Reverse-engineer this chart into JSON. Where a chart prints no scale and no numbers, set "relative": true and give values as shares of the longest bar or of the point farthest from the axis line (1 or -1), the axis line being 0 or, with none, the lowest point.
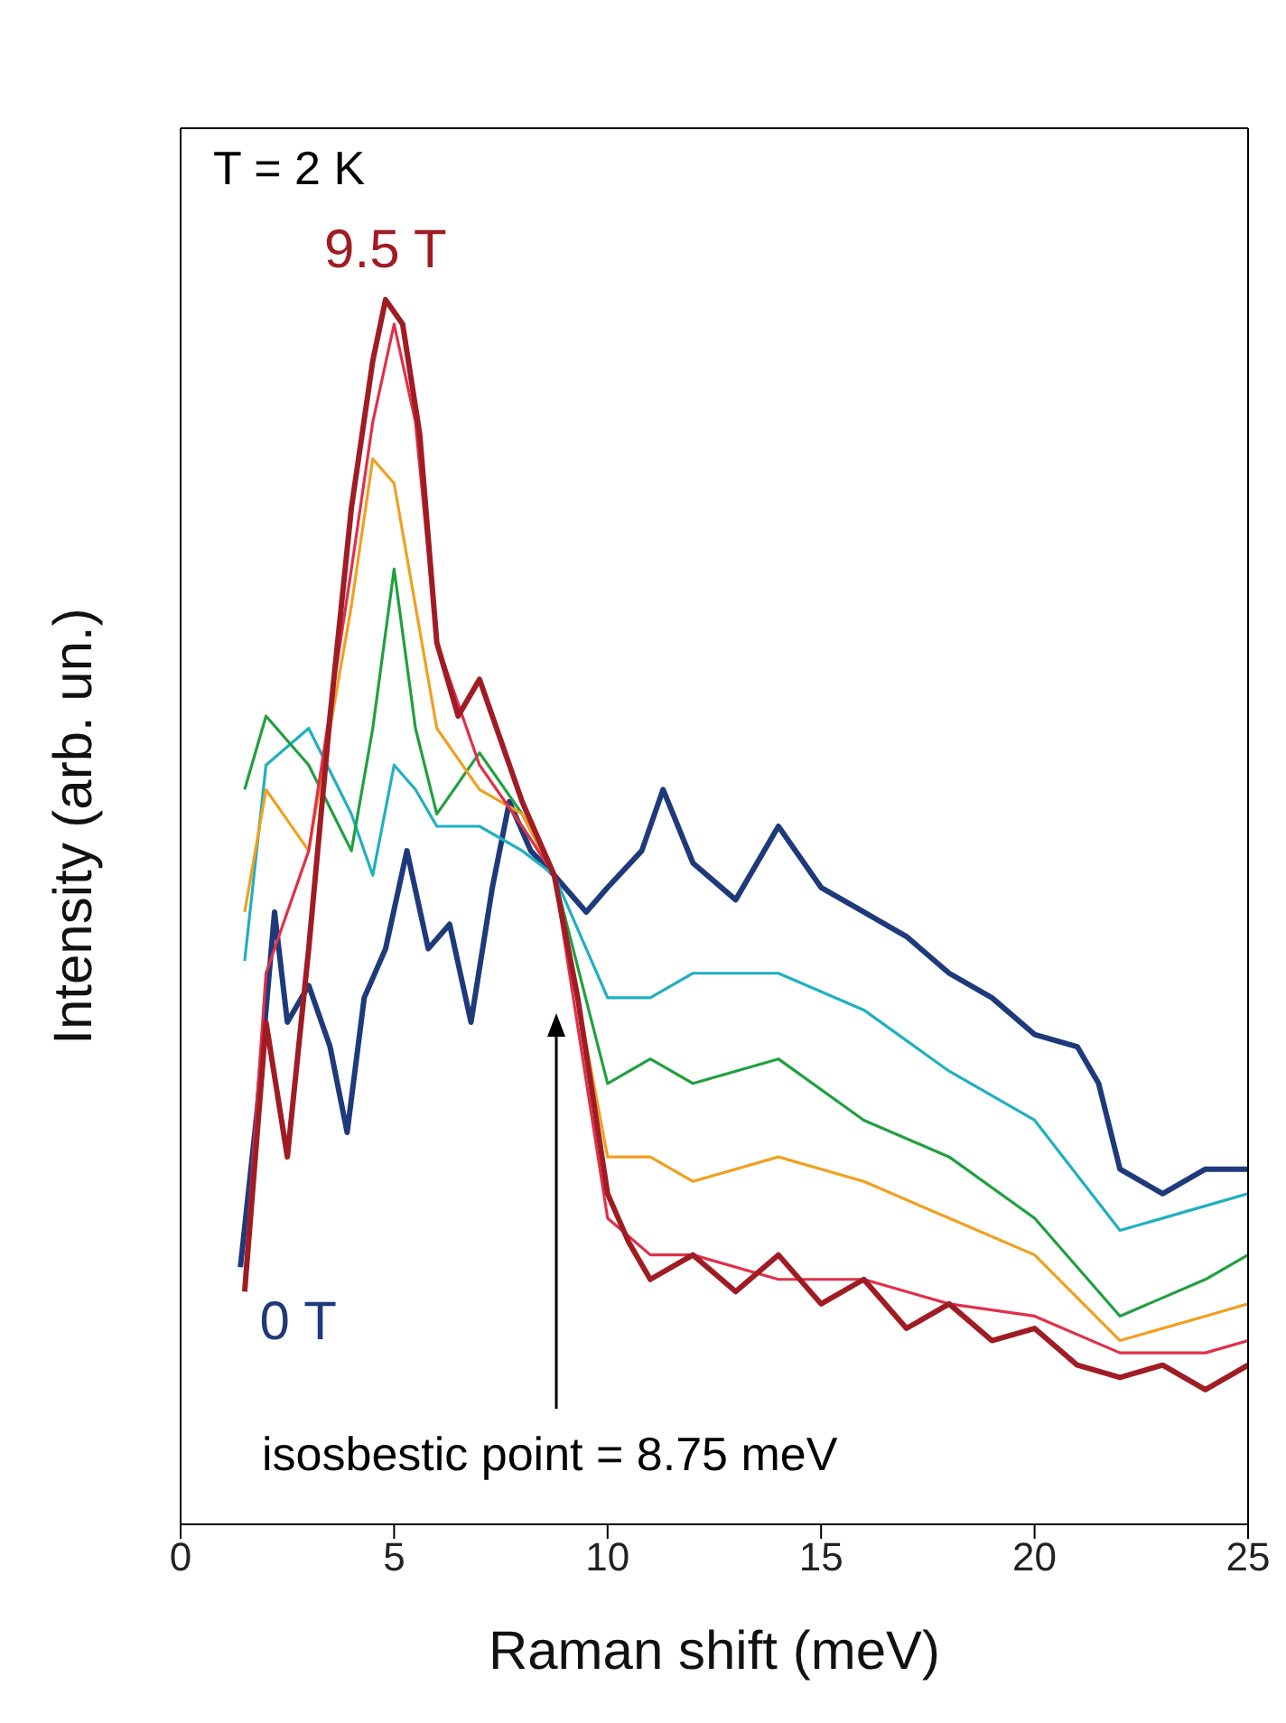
{
  "chart_data": {
    "type": "line",
    "relative": true,
    "xlabel": "Raman shift (meV)",
    "ylabel": "Intensity (arb. un.)",
    "xlim": [
      0,
      25
    ],
    "xticks": [
      0,
      5,
      10,
      15,
      20,
      25
    ],
    "tick_labels": "x",
    "grid": false,
    "legend": false,
    "marker": "none",
    "line_style": "solid",
    "annotations": [
      "T = 2 K",
      "isosbestic point = 8.75 meV"
    ],
    "series": [
      {
        "name": "0 T",
        "color": "#1f3a7a",
        "x": [
          1.4,
          1.8,
          2.2,
          2.5,
          3.0,
          3.5,
          3.9,
          4.3,
          4.8,
          5.3,
          5.8,
          6.3,
          6.8,
          7.3,
          7.7,
          8.2,
          8.75,
          9.5,
          10,
          10.8,
          11.3,
          12,
          13,
          14,
          15,
          16,
          17,
          18,
          19,
          20,
          21,
          21.5,
          22,
          23,
          24,
          25
        ],
        "values": [
          0.21,
          0.34,
          0.5,
          0.41,
          0.44,
          0.39,
          0.32,
          0.43,
          0.47,
          0.55,
          0.47,
          0.49,
          0.41,
          0.52,
          0.59,
          0.55,
          0.53,
          0.5,
          0.52,
          0.55,
          0.6,
          0.54,
          0.51,
          0.57,
          0.52,
          0.5,
          0.48,
          0.45,
          0.43,
          0.4,
          0.39,
          0.36,
          0.29,
          0.27,
          0.29,
          0.29
        ]
      },
      {
        "color": "#20b0c0",
        "x": [
          1.5,
          2,
          3,
          4,
          4.5,
          5,
          5.5,
          6,
          7,
          8,
          8.75,
          10,
          11,
          12,
          14,
          16,
          18,
          20,
          22,
          24,
          25
        ],
        "values": [
          0.46,
          0.62,
          0.65,
          0.58,
          0.53,
          0.62,
          0.6,
          0.57,
          0.57,
          0.55,
          0.53,
          0.43,
          0.43,
          0.45,
          0.45,
          0.42,
          0.37,
          0.33,
          0.24,
          0.26,
          0.27
        ]
      },
      {
        "color": "#20a040",
        "x": [
          1.5,
          2,
          3,
          4,
          4.5,
          5,
          5.5,
          6,
          7,
          8,
          8.75,
          10,
          11,
          12,
          14,
          16,
          18,
          20,
          22,
          24,
          25
        ],
        "values": [
          0.6,
          0.66,
          0.62,
          0.55,
          0.65,
          0.78,
          0.65,
          0.58,
          0.63,
          0.58,
          0.53,
          0.36,
          0.38,
          0.36,
          0.38,
          0.33,
          0.3,
          0.25,
          0.17,
          0.2,
          0.22
        ]
      },
      {
        "color": "#f0a020",
        "x": [
          1.5,
          2,
          3,
          4,
          4.5,
          5,
          5.5,
          6,
          7,
          8,
          8.75,
          10,
          11,
          12,
          14,
          16,
          18,
          20,
          22,
          24,
          25
        ],
        "values": [
          0.5,
          0.6,
          0.55,
          0.75,
          0.87,
          0.85,
          0.75,
          0.65,
          0.6,
          0.58,
          0.53,
          0.3,
          0.3,
          0.28,
          0.3,
          0.28,
          0.25,
          0.22,
          0.15,
          0.17,
          0.18
        ]
      },
      {
        "color": "#e0304a",
        "x": [
          1.5,
          2,
          3,
          4,
          4.5,
          5,
          5.5,
          6,
          7,
          8,
          8.75,
          10,
          11,
          12,
          14,
          16,
          18,
          20,
          22,
          24,
          25
        ],
        "values": [
          0.2,
          0.45,
          0.55,
          0.78,
          0.9,
          0.98,
          0.9,
          0.72,
          0.62,
          0.57,
          0.53,
          0.25,
          0.22,
          0.22,
          0.2,
          0.2,
          0.18,
          0.17,
          0.14,
          0.14,
          0.15
        ]
      },
      {
        "name": "9.5 T",
        "color": "#a01c24",
        "x": [
          1.5,
          2.0,
          2.5,
          3.0,
          3.5,
          4.0,
          4.5,
          4.8,
          5.2,
          5.6,
          6,
          6.5,
          7,
          7.5,
          8,
          8.75,
          9.3,
          10,
          10.5,
          11,
          12,
          13,
          14,
          15,
          16,
          17,
          18,
          19,
          20,
          21,
          22,
          23,
          24,
          25
        ],
        "values": [
          0.19,
          0.41,
          0.3,
          0.47,
          0.66,
          0.83,
          0.95,
          1.0,
          0.98,
          0.89,
          0.72,
          0.66,
          0.69,
          0.64,
          0.59,
          0.53,
          0.43,
          0.27,
          0.23,
          0.2,
          0.22,
          0.19,
          0.22,
          0.18,
          0.2,
          0.16,
          0.18,
          0.15,
          0.16,
          0.13,
          0.12,
          0.13,
          0.11,
          0.13
        ]
      }
    ]
  }
}
